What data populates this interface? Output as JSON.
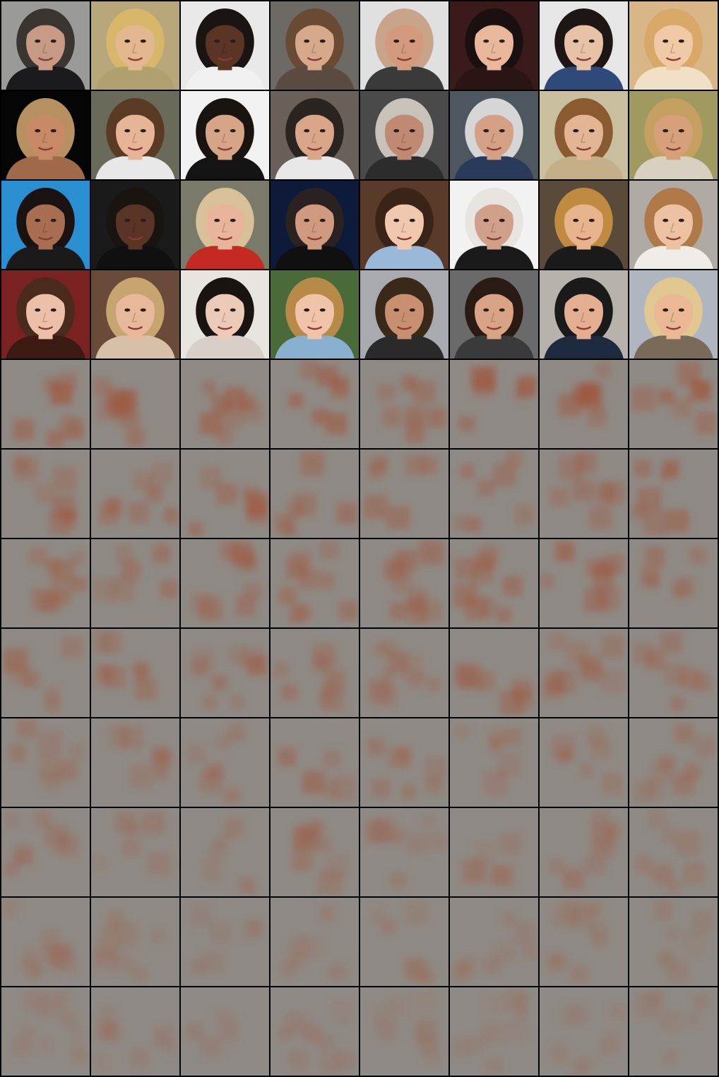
{
  "grid": {
    "columns": 8,
    "face_rows": 4,
    "noise_rows": 8,
    "colors": {
      "border": "#000000",
      "noise_base": "#8f8a85",
      "noise_blob": "#a0553a"
    }
  },
  "faces": [
    {
      "bg": "#9a9a98",
      "skin": "#c79a86",
      "hair": "#3a3530",
      "shirt": "#1b1b1d"
    },
    {
      "bg": "#b8a77a",
      "skin": "#e4b88e",
      "hair": "#d8b66a",
      "shirt": "#b0a070"
    },
    {
      "bg": "#e9e9e9",
      "skin": "#5a3526",
      "hair": "#1a1412",
      "shirt": "#f0f0f0"
    },
    {
      "bg": "#6d6a66",
      "skin": "#d7a98c",
      "hair": "#6a4a33",
      "shirt": "#5a4a40"
    },
    {
      "bg": "#e0e0e0",
      "skin": "#d49a7e",
      "hair": "#c8a48a",
      "shirt": "#3a3a3a"
    },
    {
      "bg": "#3a1a1a",
      "skin": "#e9b79c",
      "hair": "#1a1010",
      "shirt": "#2a1414"
    },
    {
      "bg": "#e6e6e6",
      "skin": "#e8c2a6",
      "hair": "#1d1614",
      "shirt": "#2f4a7a"
    },
    {
      "bg": "#d9b688",
      "skin": "#f0c9a6",
      "hair": "#d8a868",
      "shirt": "#efe0c6"
    },
    {
      "bg": "#050505",
      "skin": "#c88a66",
      "hair": "#b69060",
      "shirt": "#a06a4a"
    },
    {
      "bg": "#6a6a5a",
      "skin": "#e6b496",
      "hair": "#5a3a22",
      "shirt": "#e8e8e8"
    },
    {
      "bg": "#f2f2f2",
      "skin": "#d6a486",
      "hair": "#1a1410",
      "shirt": "#141414"
    },
    {
      "bg": "#6a605a",
      "skin": "#d9a68a",
      "hair": "#2a2420",
      "shirt": "#e8e8e8"
    },
    {
      "bg": "#4a4a4a",
      "skin": "#c08a72",
      "hair": "#c8c2ba",
      "shirt": "#2c2c2c"
    },
    {
      "bg": "#4e5660",
      "skin": "#d4a086",
      "hair": "#d6d6d6",
      "shirt": "#2a3a5a"
    },
    {
      "bg": "#c9bf9e",
      "skin": "#e2b594",
      "hair": "#8a5a30",
      "shirt": "#c4b088"
    },
    {
      "bg": "#a09a60",
      "skin": "#d6a07a",
      "hair": "#c6a060",
      "shirt": "#d8d0c0"
    },
    {
      "bg": "#2a8fd0",
      "skin": "#a86e52",
      "hair": "#1a1210",
      "shirt": "#1a1a1a"
    },
    {
      "bg": "#1a1a1a",
      "skin": "#5a3424",
      "hair": "#1a1410",
      "shirt": "#101010"
    },
    {
      "bg": "#7a7a6a",
      "skin": "#e8b49a",
      "hair": "#d8c098",
      "shirt": "#c42a22"
    },
    {
      "bg": "#0d1a3a",
      "skin": "#d09a80",
      "hair": "#2a2220",
      "shirt": "#101010"
    },
    {
      "bg": "#5a3a28",
      "skin": "#f0c8ae",
      "hair": "#3a2418",
      "shirt": "#9ab8d8"
    },
    {
      "bg": "#f2f2f2",
      "skin": "#d0a08a",
      "hair": "#e8e4e0",
      "shirt": "#1a1a1a"
    },
    {
      "bg": "#5a4a3a",
      "skin": "#e8b48e",
      "hair": "#c08a40",
      "shirt": "#1a1a1a"
    },
    {
      "bg": "#b0aaa4",
      "skin": "#ecc2a2",
      "hair": "#b07a48",
      "shirt": "#f0ece8"
    },
    {
      "bg": "#7a2222",
      "skin": "#ecc0a8",
      "hair": "#4a2a1a",
      "shirt": "#3a1a12"
    },
    {
      "bg": "#6a4a38",
      "skin": "#e8b89a",
      "hair": "#c8a470",
      "shirt": "#d8c0a8"
    },
    {
      "bg": "#e8e4e0",
      "skin": "#eccab8",
      "hair": "#1a1410",
      "shirt": "#d8d0c8"
    },
    {
      "bg": "#4a6a3a",
      "skin": "#f0c4a8",
      "hair": "#b88a4a",
      "shirt": "#8ab0d0"
    },
    {
      "bg": "#a8aab0",
      "skin": "#c89070",
      "hair": "#3a2818",
      "shirt": "#2a2a2a"
    },
    {
      "bg": "#6a6a6a",
      "skin": "#d9a486",
      "hair": "#2a1a14",
      "shirt": "#3a3a3a"
    },
    {
      "bg": "#b8b2ac",
      "skin": "#e4ae90",
      "hair": "#1a1a1a",
      "shirt": "#1e2a40"
    },
    {
      "bg": "#b0b6c0",
      "skin": "#eab894",
      "hair": "#e0c890",
      "shirt": "#7a6a5a"
    }
  ]
}
